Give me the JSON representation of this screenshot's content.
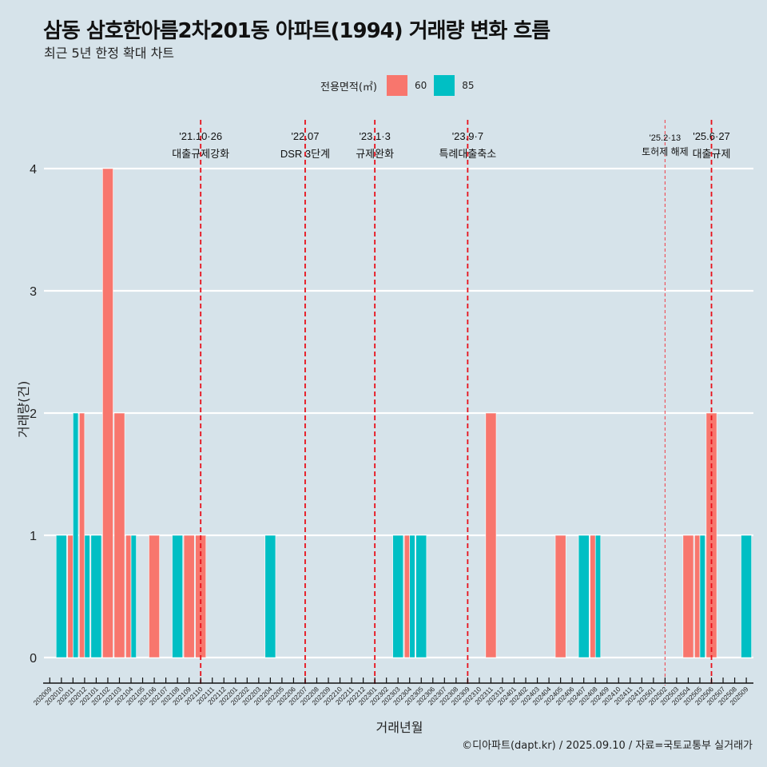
{
  "header": {
    "title": "삼동 삼호한아름2차201동 아파트(1994) 거래량 변화 흐름",
    "subtitle": "최근 5년 한정 확대 차트"
  },
  "legend": {
    "title": "전용면적(㎡)",
    "items": [
      {
        "label": "60",
        "color": "#f8766d"
      },
      {
        "label": "85",
        "color": "#00bfc4"
      }
    ]
  },
  "caption": "©디아파트(dapt.kr) / 2025.09.10 / 자료=국토교통부 실거래가",
  "chart_data": {
    "type": "bar",
    "title": "삼동 삼호한아름2차201동 아파트(1994) 거래량 변화 흐름",
    "subtitle": "최근 5년 한정 확대 차트",
    "xlabel": "거래년월",
    "ylabel": "거래량(건)",
    "ylim": [
      0,
      4
    ],
    "yticks": [
      "0",
      "1",
      "2",
      "3",
      "4"
    ],
    "grid": true,
    "legend_position": "top",
    "categories": [
      "202009",
      "202010",
      "202011",
      "202012",
      "202101",
      "202102",
      "202103",
      "202104",
      "202105",
      "202106",
      "202107",
      "202108",
      "202109",
      "202110",
      "202111",
      "202112",
      "202201",
      "202202",
      "202203",
      "202204",
      "202205",
      "202206",
      "202207",
      "202208",
      "202209",
      "202210",
      "202211",
      "202212",
      "202301",
      "202302",
      "202303",
      "202304",
      "202305",
      "202306",
      "202307",
      "202308",
      "202309",
      "202310",
      "202311",
      "202312",
      "202401",
      "202402",
      "202403",
      "202404",
      "202405",
      "202406",
      "202407",
      "202408",
      "202409",
      "202410",
      "202411",
      "202412",
      "202501",
      "202502",
      "202503",
      "202504",
      "202505",
      "202506",
      "202507",
      "202508",
      "202509"
    ],
    "series": [
      {
        "name": "60",
        "color": "#f8766d",
        "values": [
          0,
          0,
          1,
          2,
          0,
          4,
          2,
          1,
          0,
          1,
          0,
          0,
          1,
          1,
          0,
          0,
          0,
          0,
          0,
          0,
          0,
          0,
          0,
          0,
          0,
          0,
          0,
          0,
          0,
          0,
          0,
          1,
          0,
          0,
          0,
          0,
          0,
          0,
          2,
          0,
          0,
          0,
          0,
          0,
          1,
          0,
          0,
          1,
          0,
          0,
          0,
          0,
          0,
          0,
          0,
          1,
          1,
          2,
          0,
          0,
          0
        ]
      },
      {
        "name": "85",
        "color": "#00bfc4",
        "values": [
          0,
          1,
          2,
          1,
          1,
          0,
          0,
          1,
          0,
          0,
          0,
          1,
          0,
          0,
          0,
          0,
          0,
          0,
          0,
          1,
          0,
          0,
          0,
          0,
          0,
          0,
          0,
          0,
          0,
          0,
          1,
          1,
          1,
          0,
          0,
          0,
          0,
          0,
          0,
          0,
          0,
          0,
          0,
          0,
          0,
          0,
          1,
          1,
          0,
          0,
          0,
          0,
          0,
          0,
          0,
          0,
          1,
          0,
          0,
          0,
          1
        ]
      }
    ],
    "annotations": [
      {
        "month": "202110",
        "date": "'21.10·26",
        "label": "대출규제강화",
        "style": "major"
      },
      {
        "month": "202207",
        "date": "'22.07",
        "label": "DSR 3단계",
        "style": "major"
      },
      {
        "month": "202301",
        "date": "'23.1·3",
        "label": "규제완화",
        "style": "major"
      },
      {
        "month": "202309",
        "date": "'23.9·7",
        "label": "특례대출축소",
        "style": "major"
      },
      {
        "month": "202502",
        "date": "'25.2·13",
        "label": "토허제 해제",
        "style": "minor"
      },
      {
        "month": "202506",
        "date": "'25.6·27",
        "label": "대출규제",
        "style": "major"
      }
    ]
  }
}
